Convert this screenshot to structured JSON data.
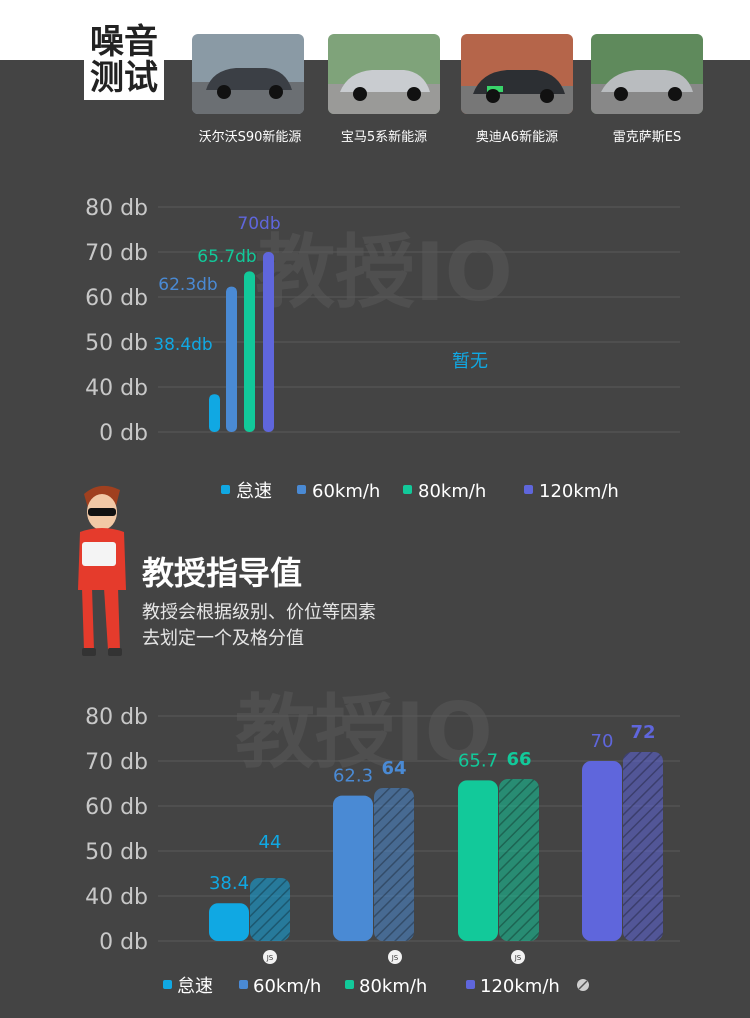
{
  "section_title": [
    "噪音",
    "测试"
  ],
  "cars": [
    {
      "name": "沃尔沃S90新能源",
      "color": "#3b3f45"
    },
    {
      "name": "宝马5系新能源",
      "color": "#c9ccd0"
    },
    {
      "name": "奥迪A6新能源",
      "color": "#2c2f33"
    },
    {
      "name": "雷克萨斯ES",
      "color": "#b9bcbf"
    }
  ],
  "advice": {
    "title": "教授指导值",
    "lines": [
      "教授会根据级别、价位等因素",
      "去划定一个及格分值"
    ]
  },
  "watermark": "教授IO",
  "colors": {
    "idle": "#10a8e3",
    "s60": "#4a8ad4",
    "s80": "#12c99a",
    "s120": "#5f66dc"
  },
  "chart_data": [
    {
      "type": "bar",
      "y_tick_labels": [
        "0 db",
        "40 db",
        "50 db",
        "60 db",
        "70 db",
        "80 db"
      ],
      "ylim": [
        30,
        80
      ],
      "categories": [
        "沃尔沃S90新能源"
      ],
      "series": [
        {
          "name": "怠速",
          "values": [
            38.4
          ],
          "labels": [
            "38.4db"
          ]
        },
        {
          "name": "60km/h",
          "values": [
            62.3
          ],
          "labels": [
            "62.3db"
          ]
        },
        {
          "name": "80km/h",
          "values": [
            65.7
          ],
          "labels": [
            "65.7db"
          ]
        },
        {
          "name": "120km/h",
          "values": [
            70
          ],
          "labels": [
            "70db"
          ]
        }
      ],
      "annotation": "暂无",
      "legend": [
        "怠速",
        "60km/h",
        "80km/h",
        "120km/h"
      ]
    },
    {
      "type": "bar",
      "y_tick_labels": [
        "0 db",
        "40 db",
        "50 db",
        "60 db",
        "70 db",
        "80 db"
      ],
      "ylim": [
        30,
        80
      ],
      "categories": [
        "怠速",
        "60km/h",
        "80km/h",
        "120km/h"
      ],
      "series": [
        {
          "name": "",
          "values": [
            38.4,
            62.3,
            65.7,
            70
          ],
          "labels": [
            "38.4",
            "62.3",
            "65.7",
            "70"
          ]
        },
        {
          "name": "",
          "values": [
            44,
            64,
            66,
            72
          ],
          "labels": [
            "44",
            "64",
            "66",
            "72"
          ]
        }
      ],
      "badge": "JS",
      "legend": [
        "怠速",
        "60km/h",
        "80km/h",
        "120km/h"
      ]
    }
  ]
}
